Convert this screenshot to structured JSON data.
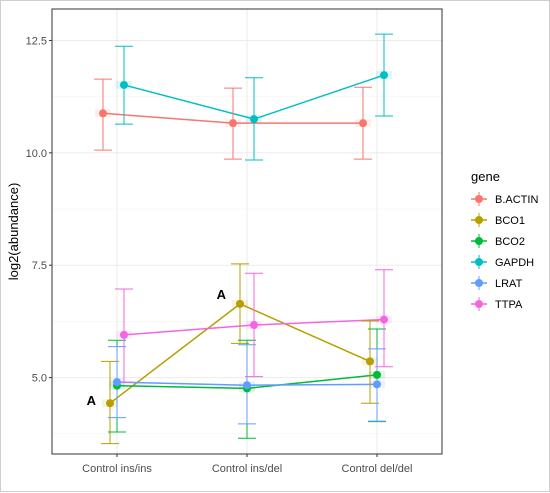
{
  "chart_data": {
    "type": "line",
    "xlabel": "",
    "ylabel": "log2(abundance)",
    "categories": [
      "Control ins/ins",
      "Control ins/del",
      "Control del/del"
    ],
    "ylim": [
      3.3,
      13.2
    ],
    "yticks": [
      5.0,
      7.5,
      10.0,
      12.5
    ],
    "ytick_labels": [
      "5.0",
      "7.5",
      "10.0",
      "12.5"
    ],
    "grid": true,
    "legend": {
      "title": "gene",
      "position": "right"
    },
    "series": [
      {
        "name": "B.ACTIN",
        "color": "#F8766D",
        "values": [
          10.88,
          10.66,
          10.66
        ],
        "lower": [
          10.06,
          9.86,
          9.86
        ],
        "upper": [
          11.64,
          11.44,
          11.46
        ]
      },
      {
        "name": "BCO1",
        "color": "#B79F00",
        "values": [
          4.43,
          6.64,
          5.36
        ],
        "lower": [
          3.53,
          5.76,
          4.43
        ],
        "upper": [
          5.36,
          7.53,
          6.26
        ]
      },
      {
        "name": "BCO2",
        "color": "#00BA38",
        "values": [
          4.82,
          4.76,
          5.06
        ],
        "lower": [
          3.79,
          3.65,
          4.02
        ],
        "upper": [
          5.83,
          5.83,
          6.08
        ]
      },
      {
        "name": "GAPDH",
        "color": "#00BFC4",
        "values": [
          11.51,
          10.75,
          11.73
        ],
        "lower": [
          10.64,
          9.84,
          10.82
        ],
        "upper": [
          12.37,
          11.67,
          12.64
        ]
      },
      {
        "name": "LRAT",
        "color": "#619CFF",
        "values": [
          4.9,
          4.83,
          4.85
        ],
        "lower": [
          4.11,
          3.97,
          4.03
        ],
        "upper": [
          5.69,
          5.73,
          5.64
        ]
      },
      {
        "name": "TTPA",
        "color": "#F564E3",
        "values": [
          5.95,
          6.17,
          6.29
        ],
        "lower": [
          4.9,
          5.02,
          5.24
        ],
        "upper": [
          6.97,
          7.32,
          7.4
        ]
      }
    ],
    "annotations": [
      {
        "text": "A",
        "x_index": 0,
        "y": 4.43
      },
      {
        "text": "A",
        "x_index": 1,
        "y": 6.64
      }
    ]
  }
}
